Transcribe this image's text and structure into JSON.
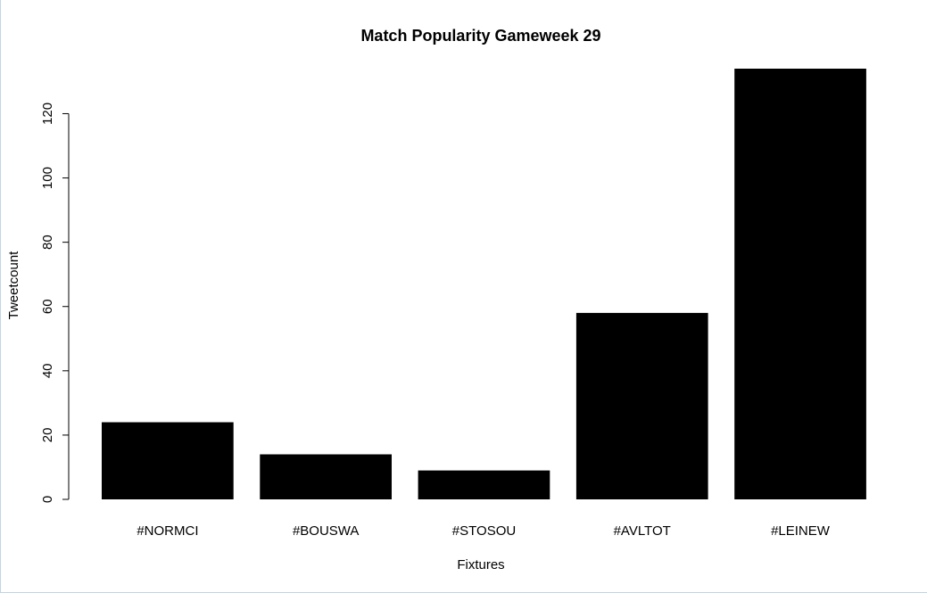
{
  "chart_data": {
    "type": "bar",
    "title": "Match Popularity Gameweek 29",
    "xlabel": "Fixtures",
    "ylabel": "Tweetcount",
    "categories": [
      "#NORMCI",
      "#BOUSWA",
      "#STOSOU",
      "#AVLTOT",
      "#LEINEW"
    ],
    "values": [
      24,
      14,
      9,
      58,
      134
    ],
    "yticks": [
      0,
      20,
      40,
      60,
      80,
      100,
      120
    ],
    "ylim": [
      0,
      134
    ],
    "grid": false,
    "bar_color": "#000000"
  }
}
